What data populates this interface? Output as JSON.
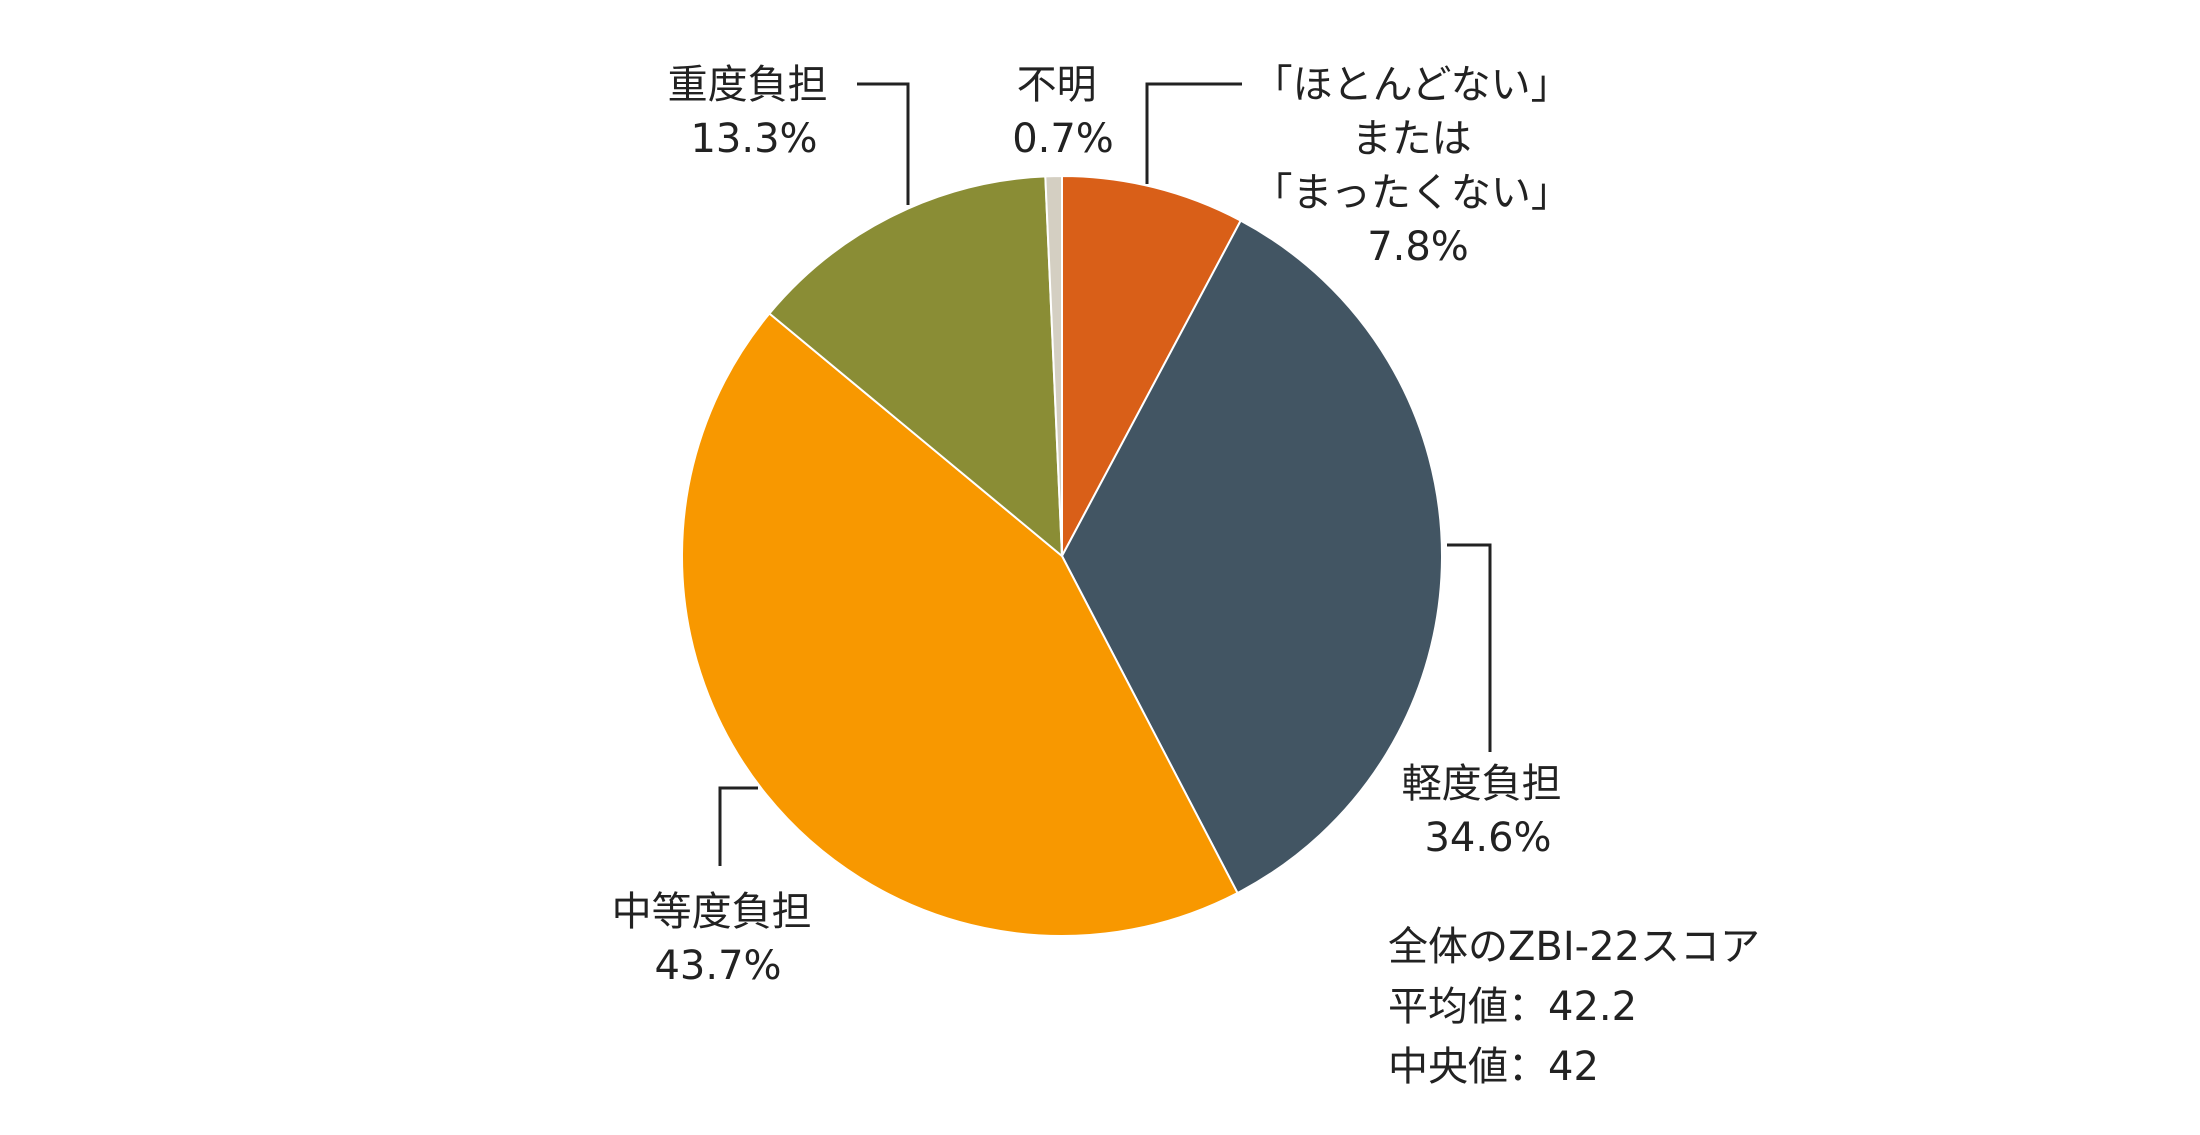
{
  "chart_data": {
    "type": "pie",
    "start": "12 o'clock",
    "direction": "clockwise",
    "slices": [
      {
        "label_lines": [
          "「ほとんどない」",
          "または",
          "「まったくない」"
        ],
        "value": 7.8,
        "value_label": "7.8%",
        "color": "#D95F18"
      },
      {
        "label_lines": [
          "軽度負担"
        ],
        "value": 34.6,
        "value_label": "34.6%",
        "color": "#425563"
      },
      {
        "label_lines": [
          "中等度負担"
        ],
        "value": 43.7,
        "value_label": "43.7%",
        "color": "#F89800"
      },
      {
        "label_lines": [
          "重度負担"
        ],
        "value": 13.3,
        "value_label": "13.3%",
        "color": "#8A8D35"
      },
      {
        "label_lines": [
          "不明"
        ],
        "value": 0.7,
        "value_label": "0.7%",
        "color": "#D4CFC2"
      }
    ],
    "annotation": [
      "全体のZBI-22スコア",
      "平均値：42.2",
      "中央値：42"
    ]
  }
}
